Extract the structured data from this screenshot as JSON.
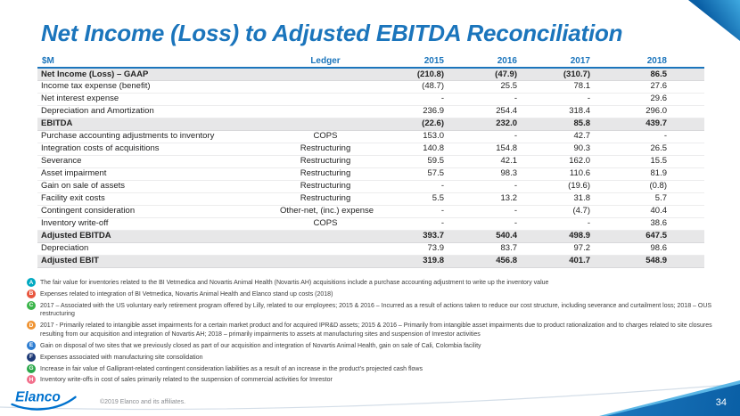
{
  "page": {
    "title": "Net Income (Loss) to Adjusted EBITDA Reconciliation",
    "page_number": "34",
    "copyright": "©2019 Elanco and its affiliates.",
    "logo_text": "Elanco"
  },
  "colors": {
    "title_blue": "#1B75BC",
    "summary_row_bg": "#E7E7E8",
    "footer_blue": "#0A5FA5",
    "badges": {
      "A": "#00A9C1",
      "B": "#E8553D",
      "C": "#3BB54A",
      "D": "#EF9332",
      "E": "#2D7DD2",
      "F": "#1E3A77",
      "G": "#2BA84A",
      "H": "#F2708C"
    }
  },
  "table": {
    "headers": [
      "$M",
      "Ledger",
      "2015",
      "2016",
      "2017",
      "2018"
    ],
    "rows": [
      {
        "badge": "",
        "label": "Net Income (Loss) – GAAP",
        "ledger": "",
        "values": [
          "(210.8)",
          "(47.9)",
          "(310.7)",
          "86.5"
        ],
        "emphasis": true
      },
      {
        "badge": "",
        "label": "Income tax expense (benefit)",
        "ledger": "",
        "values": [
          "(48.7)",
          "25.5",
          "78.1",
          "27.6"
        ],
        "emphasis": false
      },
      {
        "badge": "",
        "label": "Net interest expense",
        "ledger": "",
        "values": [
          "-",
          "-",
          "-",
          "29.6"
        ],
        "emphasis": false
      },
      {
        "badge": "",
        "label": "Depreciation and Amortization",
        "ledger": "",
        "values": [
          "236.9",
          "254.4",
          "318.4",
          "296.0"
        ],
        "emphasis": false
      },
      {
        "badge": "",
        "label": "EBITDA",
        "ledger": "",
        "values": [
          "(22.6)",
          "232.0",
          "85.8",
          "439.7"
        ],
        "emphasis": true
      },
      {
        "badge": "A",
        "label": "Purchase accounting adjustments to inventory",
        "ledger": "COPS",
        "values": [
          "153.0",
          "-",
          "42.7",
          "-"
        ],
        "emphasis": false
      },
      {
        "badge": "B",
        "label": "Integration costs of acquisitions",
        "ledger": "Restructuring",
        "values": [
          "140.8",
          "154.8",
          "90.3",
          "26.5"
        ],
        "emphasis": false
      },
      {
        "badge": "C",
        "label": "Severance",
        "ledger": "Restructuring",
        "values": [
          "59.5",
          "42.1",
          "162.0",
          "15.5"
        ],
        "emphasis": false
      },
      {
        "badge": "D",
        "label": "Asset impairment",
        "ledger": "Restructuring",
        "values": [
          "57.5",
          "98.3",
          "110.6",
          "81.9"
        ],
        "emphasis": false
      },
      {
        "badge": "E",
        "label": "Gain on sale of assets",
        "ledger": "Restructuring",
        "values": [
          "-",
          "-",
          "(19.6)",
          "(0.8)"
        ],
        "emphasis": false
      },
      {
        "badge": "F",
        "label": "Facility exit costs",
        "ledger": "Restructuring",
        "values": [
          "5.5",
          "13.2",
          "31.8",
          "5.7"
        ],
        "emphasis": false
      },
      {
        "badge": "G",
        "label": "Contingent consideration",
        "ledger": "Other-net, (inc.) expense",
        "values": [
          "-",
          "-",
          "(4.7)",
          "40.4"
        ],
        "emphasis": false
      },
      {
        "badge": "H",
        "label": "Inventory write-off",
        "ledger": "COPS",
        "values": [
          "-",
          "-",
          "-",
          "38.6"
        ],
        "emphasis": false
      },
      {
        "badge": "",
        "label": "Adjusted EBITDA",
        "ledger": "",
        "values": [
          "393.7",
          "540.4",
          "498.9",
          "647.5"
        ],
        "emphasis": true
      },
      {
        "badge": "",
        "label": "Depreciation",
        "ledger": "",
        "values": [
          "73.9",
          "83.7",
          "97.2",
          "98.6"
        ],
        "emphasis": false
      },
      {
        "badge": "",
        "label": "Adjusted EBIT",
        "ledger": "",
        "values": [
          "319.8",
          "456.8",
          "401.7",
          "548.9"
        ],
        "emphasis": true
      }
    ]
  },
  "footnotes": [
    {
      "badge": "A",
      "text": "The fair value for inventories related to the BI Vetmedica and Novartis Animal Health (Novartis AH) acquisitions include a purchase accounting adjustment to write up the inventory value"
    },
    {
      "badge": "B",
      "text": "Expenses related to integration of BI Vetmedica, Novartis Animal Health and Elanco stand up costs (2018)"
    },
    {
      "badge": "C",
      "text": "2017 – Associated with the US voluntary early retirement program offered by Lilly, related to our employees; 2015 & 2016 – Incurred as a result of actions taken to reduce our cost structure, including severance and curtailment loss; 2018 – OUS restructuring"
    },
    {
      "badge": "D",
      "text": "2017 - Primarily related to intangible asset impairments for a certain market product and for acquired IPR&D assets; 2015 & 2016 – Primarily from intangible asset impairments due to product rationalization and to charges related to site closures resulting from our acquisition and integration of Novartis AH; 2018 – primarily impairments to assets at manufacturing sites and suspension of Imrestor activities"
    },
    {
      "badge": "E",
      "text": "Gain on disposal of two sites that we previously closed as part of our acquisition and integration of Novartis Animal Health, gain on sale of Cali, Colombia facility"
    },
    {
      "badge": "F",
      "text": "Expenses associated with manufacturing site consolidation"
    },
    {
      "badge": "G",
      "text": "Increase in fair value of Galliprant-related contingent consideration liabilities as a result of an increase in the product's projected cash flows"
    },
    {
      "badge": "H",
      "text": "Inventory write-offs in cost of sales primarily related to the suspension of commercial activities for Imrestor"
    }
  ]
}
